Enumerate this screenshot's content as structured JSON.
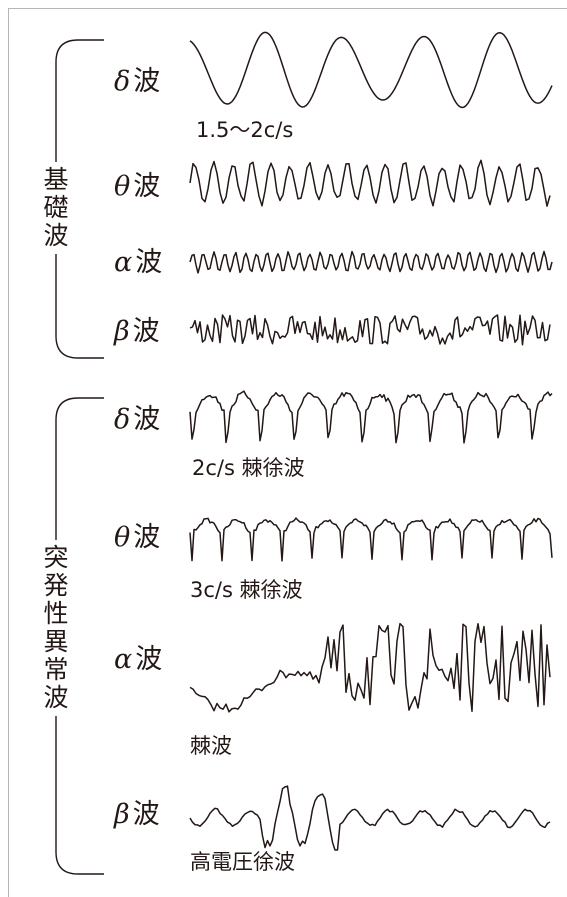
{
  "groups": [
    {
      "name": "基\n礎\n波",
      "waves": [
        {
          "greek": "δ",
          "suffix": "波",
          "note": "1.5〜2c/s"
        },
        {
          "greek": "θ",
          "suffix": "波",
          "note": ""
        },
        {
          "greek": "α",
          "suffix": "波",
          "note": ""
        },
        {
          "greek": "β",
          "suffix": "波",
          "note": ""
        }
      ]
    },
    {
      "name": "突\n発\n性\n異\n常\n波",
      "waves": [
        {
          "greek": "δ",
          "suffix": "波",
          "note": "2c/s 棘徐波"
        },
        {
          "greek": "θ",
          "suffix": "波",
          "note": "3c/s 棘徐波"
        },
        {
          "greek": "α",
          "suffix": "波",
          "note": "棘波"
        },
        {
          "greek": "β",
          "suffix": "波",
          "note": "高電圧徐波"
        }
      ]
    }
  ],
  "colors": {
    "ink": "#231815",
    "frame": "#b5b5b5"
  }
}
